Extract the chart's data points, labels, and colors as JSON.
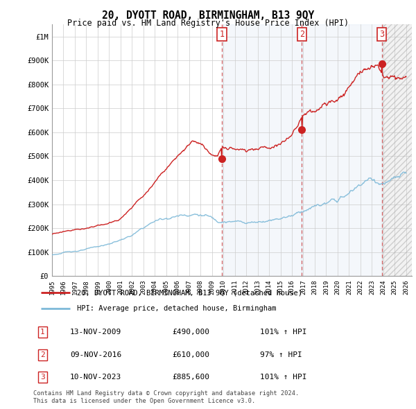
{
  "title": "20, DYOTT ROAD, BIRMINGHAM, B13 9QY",
  "subtitle": "Price paid vs. HM Land Registry's House Price Index (HPI)",
  "hpi_line_color": "#7db9d8",
  "price_line_color": "#cc2222",
  "sale_dot_color": "#cc2222",
  "ylim": [
    0,
    1050000
  ],
  "yticks": [
    0,
    100000,
    200000,
    300000,
    400000,
    500000,
    600000,
    700000,
    800000,
    900000,
    1000000
  ],
  "ytick_labels": [
    "£0",
    "£100K",
    "£200K",
    "£300K",
    "£400K",
    "£500K",
    "£600K",
    "£700K",
    "£800K",
    "£900K",
    "£1M"
  ],
  "sale_label_dates": [
    2009.87,
    2016.87,
    2023.87
  ],
  "sale_prices": [
    490000,
    610000,
    885600
  ],
  "sale_labels": [
    "1",
    "2",
    "3"
  ],
  "legend_entries": [
    "20, DYOTT ROAD, BIRMINGHAM, B13 9QY (detached house)",
    "HPI: Average price, detached house, Birmingham"
  ],
  "table_rows": [
    [
      "1",
      "13-NOV-2009",
      "£490,000",
      "101% ↑ HPI"
    ],
    [
      "2",
      "09-NOV-2016",
      "£610,000",
      "97% ↑ HPI"
    ],
    [
      "3",
      "10-NOV-2023",
      "£885,600",
      "101% ↑ HPI"
    ]
  ],
  "footer_text": "Contains HM Land Registry data © Crown copyright and database right 2024.\nThis data is licensed under the Open Government Licence v3.0."
}
